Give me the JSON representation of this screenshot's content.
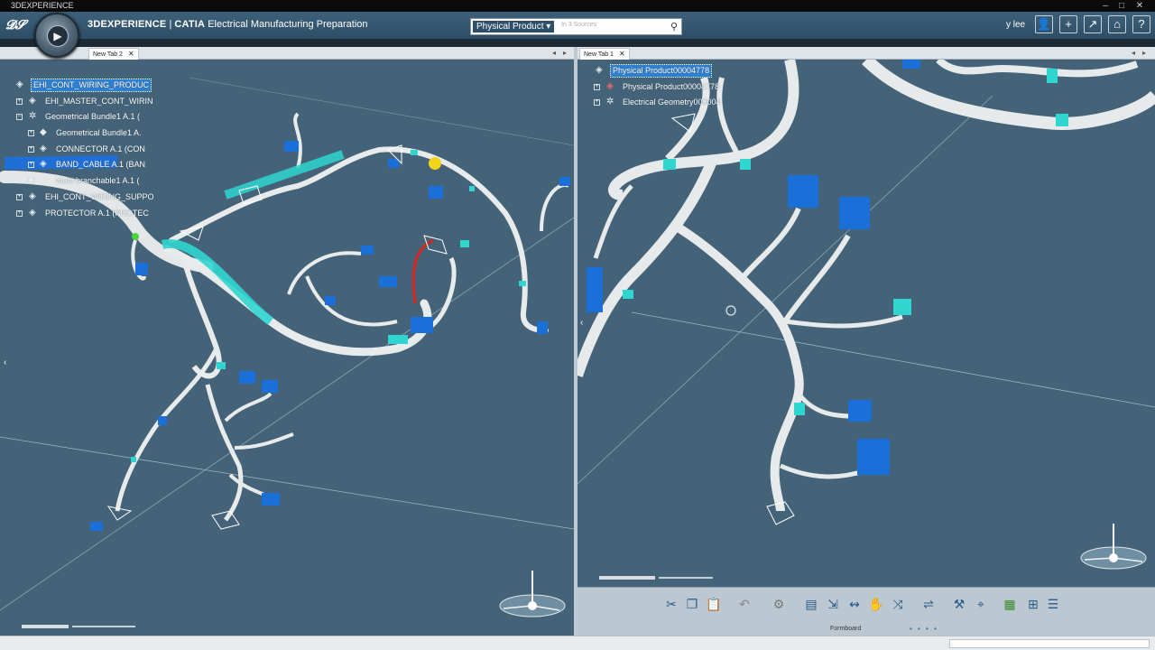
{
  "window": {
    "app_title": "3DEXPERIENCE",
    "controls": [
      "–",
      "□",
      "✕"
    ]
  },
  "topbar": {
    "brand_3dx": "3DEXPERIENCE",
    "brand_catia": "CATIA",
    "app_name": "Electrical Manufacturing Preparation",
    "search_scope": "Physical Product",
    "search_placeholder": "In 3 Sources",
    "user_name": "y lee",
    "buttons": [
      "user-icon",
      "add-icon",
      "share-icon",
      "home-icon",
      "help-icon"
    ]
  },
  "left_pane": {
    "tab_label": "New Tab 2",
    "tree": [
      {
        "label": "EHI_CONT_WIRING_PRODUC",
        "level": 0,
        "selected": true,
        "expander": ""
      },
      {
        "label": "EHI_MASTER_CONT_WIRIN",
        "level": 1,
        "selected": false,
        "expander": "+"
      },
      {
        "label": "Geometrical Bundle1 A.1 (",
        "level": 1,
        "selected": false,
        "expander": "−"
      },
      {
        "label": "Geometrical Bundle1 A.",
        "level": 2,
        "selected": false,
        "expander": "+"
      },
      {
        "label": "CONNECTOR A.1 (CON",
        "level": 2,
        "selected": false,
        "expander": "+"
      },
      {
        "label": "BAND_CABLE A.1 (BAN",
        "level": 2,
        "selected": false,
        "expander": "+"
      },
      {
        "label": "Multi-branchable1 A.1 (",
        "level": 2,
        "selected": false,
        "expander": "+"
      },
      {
        "label": "EHI_CONT_WIRING_SUPPO",
        "level": 1,
        "selected": false,
        "expander": "+"
      },
      {
        "label": "PROTECTOR A.1 (PROTEC",
        "level": 1,
        "selected": false,
        "expander": "+"
      }
    ]
  },
  "right_pane": {
    "tab_label": "New Tab 1",
    "tree": [
      {
        "label": "Physical Product00004778",
        "level": 0,
        "selected": true,
        "expander": ""
      },
      {
        "label": "Physical Product00004778",
        "level": 1,
        "selected": false,
        "expander": "+"
      },
      {
        "label": "Electrical Geometry000004",
        "level": 1,
        "selected": false,
        "expander": "+"
      }
    ]
  },
  "action_bar": {
    "section_label": "Formboard",
    "icons": [
      "cut-icon",
      "copy-icon",
      "paste-icon",
      "undo-icon",
      "gear-icon",
      "table-icon",
      "select-icon",
      "route-icon",
      "hand-icon",
      "branch-icon",
      "flatten-icon",
      "tool-icon",
      "measure-icon",
      "color-icon",
      "grid-icon",
      "list-icon"
    ],
    "pager_dots": "• • • •"
  },
  "colors": {
    "viewport_bg": "#456378",
    "wire": "#e9ecec",
    "band": "#2fd5cf",
    "connector": "#1a6fd8",
    "accent_red": "#d7261e"
  }
}
